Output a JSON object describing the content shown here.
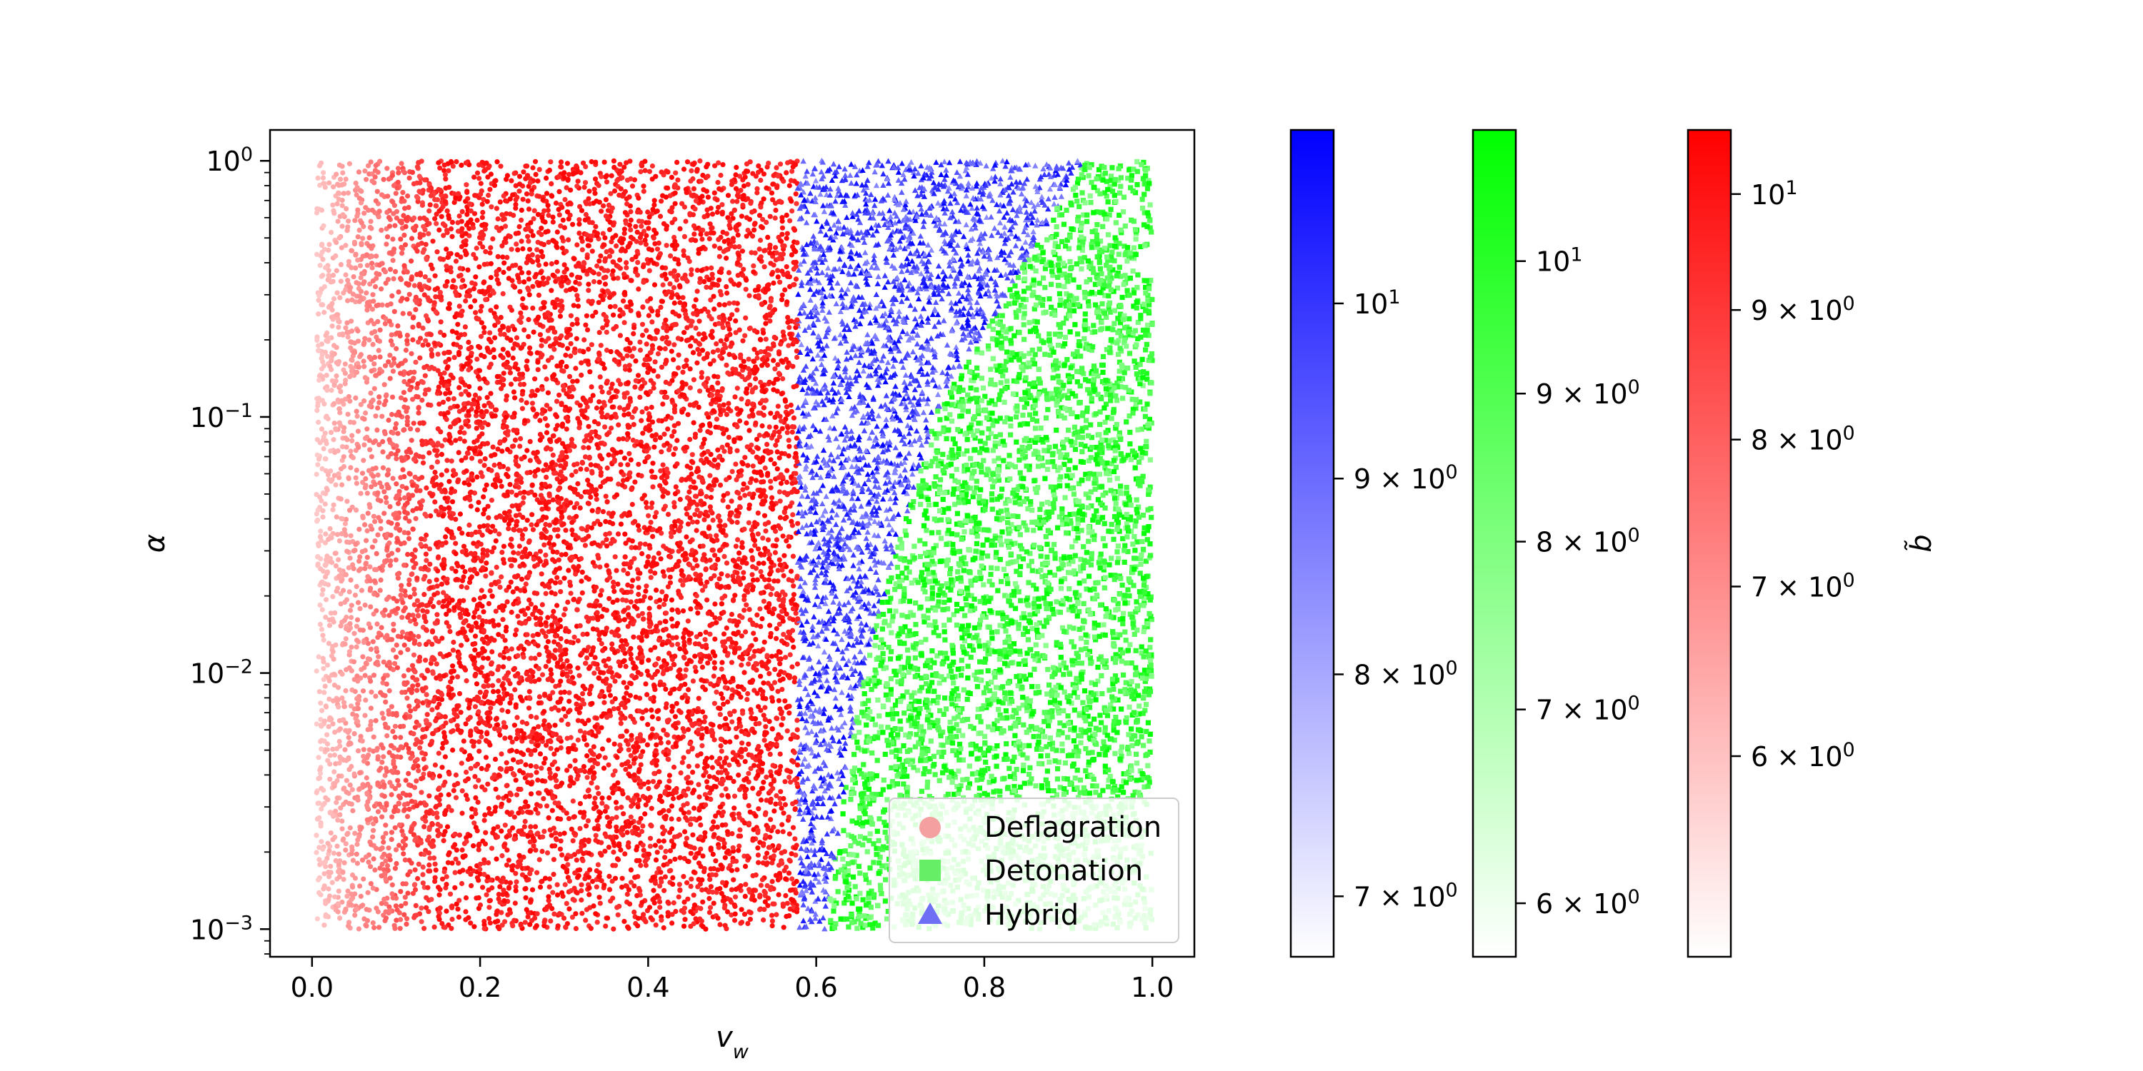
{
  "chart_data": {
    "type": "scatter",
    "xlabel": "v",
    "xlabel_sub": "w",
    "ylabel": "α",
    "xlim": [
      -0.05,
      1.05
    ],
    "ylim": [
      0.00078,
      1.32
    ],
    "y_scale": "log",
    "grid": false,
    "legend_placement": "lower-right",
    "x_ticks": [
      {
        "value": 0.0,
        "label": "0.0"
      },
      {
        "value": 0.2,
        "label": "0.2"
      },
      {
        "value": 0.4,
        "label": "0.4"
      },
      {
        "value": 0.6,
        "label": "0.6"
      },
      {
        "value": 0.8,
        "label": "0.8"
      },
      {
        "value": 1.0,
        "label": "1.0"
      }
    ],
    "y_ticks": [
      {
        "value": 1,
        "base": "10",
        "exp": "0"
      },
      {
        "value": 0.1,
        "base": "10",
        "exp": "−1"
      },
      {
        "value": 0.01,
        "base": "10",
        "exp": "−2"
      },
      {
        "value": 0.001,
        "base": "10",
        "exp": "−3"
      }
    ],
    "series": [
      {
        "name": "Deflagration",
        "marker": "circle",
        "color": "#ff0000",
        "legend_color": "#f5a0a0",
        "region": {
          "x_min": 0.005,
          "x_max": 0.578,
          "y_min": 0.001,
          "y_max": 1.0
        },
        "approx_points": 9000
      },
      {
        "name": "Detonation",
        "marker": "square",
        "color": "#00ff00",
        "legend_color": "#66ee66",
        "region": {
          "x_max": 1.0,
          "y_min": 0.001,
          "y_max": 1.0,
          "lower_boundary_x_at_alpha": [
            [
              0.001,
              0.61
            ],
            [
              0.01,
              0.655
            ],
            [
              0.1,
              0.74
            ],
            [
              1.0,
              0.92
            ]
          ]
        },
        "approx_points": 4500
      },
      {
        "name": "Hybrid",
        "marker": "triangle",
        "color": "#0000ff",
        "legend_color": "#6f6ff5",
        "region": {
          "x_min": 0.578,
          "y_min": 0.001,
          "y_max": 1.0,
          "upper_boundary_x_at_alpha": [
            [
              0.001,
              0.61
            ],
            [
              0.01,
              0.655
            ],
            [
              0.1,
              0.74
            ],
            [
              1.0,
              0.92
            ]
          ]
        },
        "approx_points": 2500
      }
    ],
    "colorbars": [
      {
        "series": "Hybrid",
        "color": "#0000ff",
        "label": "",
        "log": true,
        "min": 6.75,
        "max": 11.1,
        "ticks": [
          {
            "value": 10,
            "base": "10",
            "exp": "1"
          },
          {
            "value": 9,
            "base": "9 × 10",
            "exp": "0"
          },
          {
            "value": 8,
            "base": "8 × 10",
            "exp": "0"
          },
          {
            "value": 7,
            "base": "7 × 10",
            "exp": "0"
          }
        ]
      },
      {
        "series": "Detonation",
        "color": "#00ff00",
        "label": "",
        "log": true,
        "min": 5.75,
        "max": 11.1,
        "ticks": [
          {
            "value": 10,
            "base": "10",
            "exp": "1"
          },
          {
            "value": 9,
            "base": "9 × 10",
            "exp": "0"
          },
          {
            "value": 8,
            "base": "8 × 10",
            "exp": "0"
          },
          {
            "value": 7,
            "base": "7 × 10",
            "exp": "0"
          },
          {
            "value": 6,
            "base": "6 × 10",
            "exp": "0"
          }
        ]
      },
      {
        "series": "Deflagration",
        "color": "#ff0000",
        "label": "b̃",
        "log": true,
        "min": 5.0,
        "max": 10.6,
        "ticks": [
          {
            "value": 10,
            "base": "10",
            "exp": "1"
          },
          {
            "value": 9,
            "base": "9 × 10",
            "exp": "0"
          },
          {
            "value": 8,
            "base": "8 × 10",
            "exp": "0"
          },
          {
            "value": 7,
            "base": "7 × 10",
            "exp": "0"
          },
          {
            "value": 6,
            "base": "6 × 10",
            "exp": "0"
          }
        ]
      }
    ]
  }
}
